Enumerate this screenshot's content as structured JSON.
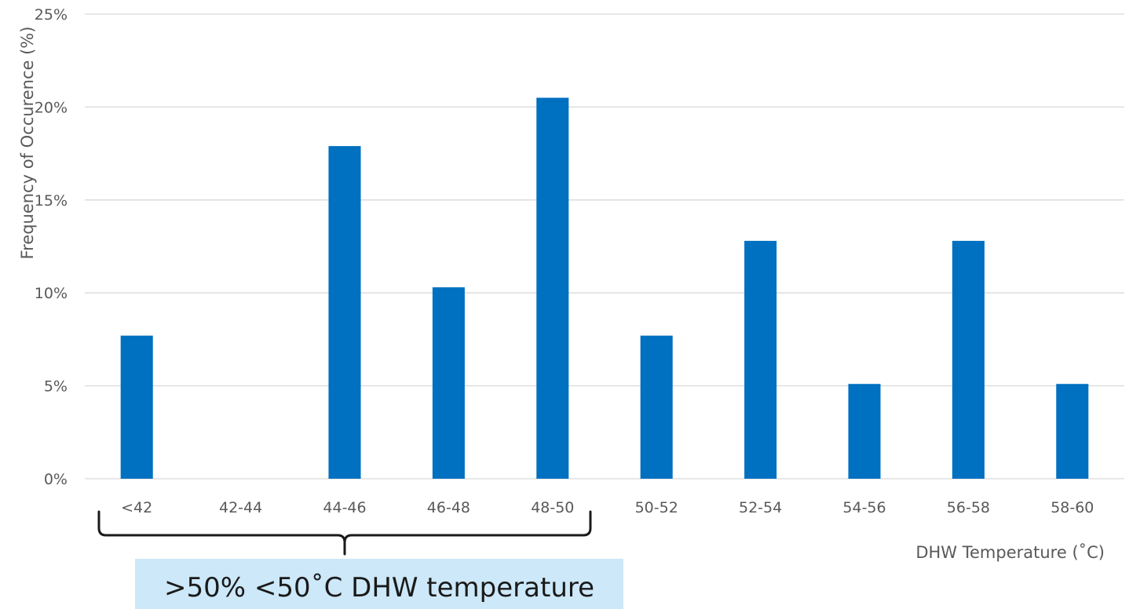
{
  "chart_data": {
    "type": "bar",
    "categories": [
      "<42",
      "42-44",
      "44-46",
      "46-48",
      "48-50",
      "50-52",
      "52-54",
      "54-56",
      "56-58",
      "58-60"
    ],
    "values": [
      7.7,
      0,
      17.9,
      10.3,
      20.5,
      7.7,
      12.8,
      5.1,
      12.8,
      5.1
    ],
    "y_ticks": [
      "0%",
      "5%",
      "10%",
      "15%",
      "20%",
      "25%"
    ],
    "ylim": [
      0,
      25
    ],
    "xlabel": "DHW Temperature (˚C)",
    "ylabel": "Frequency of Occurence (%)",
    "grid": true,
    "bar_color": "#0070C0",
    "annotation": {
      "text": ">50% <50˚C DHW temperature",
      "background": "#CCE8F9",
      "spans_categories": [
        "<42",
        "48-50"
      ]
    }
  }
}
